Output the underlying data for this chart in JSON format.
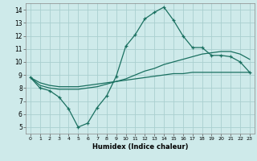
{
  "xlabel": "Humidex (Indice chaleur)",
  "bg_color": "#ceeaea",
  "grid_color": "#aacfcf",
  "line_color": "#1a7060",
  "line1_x": [
    0,
    1,
    2,
    3,
    4,
    5,
    6,
    7,
    8,
    9,
    10,
    11,
    12,
    13,
    14,
    15,
    16,
    17,
    18,
    19,
    20,
    21,
    22,
    23
  ],
  "line1_y": [
    8.8,
    8.0,
    7.8,
    7.3,
    6.4,
    5.0,
    5.3,
    6.5,
    7.4,
    8.9,
    11.2,
    12.1,
    13.3,
    13.8,
    14.2,
    13.2,
    12.0,
    11.1,
    11.1,
    10.5,
    10.5,
    10.4,
    10.0,
    9.2
  ],
  "line2_x": [
    0,
    1,
    2,
    3,
    4,
    5,
    6,
    7,
    8,
    9,
    10,
    11,
    12,
    13,
    14,
    15,
    16,
    17,
    18,
    19,
    20,
    21,
    22,
    23
  ],
  "line2_y": [
    8.8,
    8.2,
    8.0,
    7.9,
    7.9,
    7.9,
    8.0,
    8.1,
    8.3,
    8.5,
    8.7,
    9.0,
    9.3,
    9.5,
    9.8,
    10.0,
    10.2,
    10.4,
    10.6,
    10.7,
    10.8,
    10.8,
    10.6,
    10.2
  ],
  "line3_x": [
    0,
    1,
    2,
    3,
    4,
    5,
    6,
    7,
    8,
    9,
    10,
    11,
    12,
    13,
    14,
    15,
    16,
    17,
    18,
    19,
    20,
    21,
    22,
    23
  ],
  "line3_y": [
    8.8,
    8.4,
    8.2,
    8.1,
    8.1,
    8.1,
    8.2,
    8.3,
    8.4,
    8.5,
    8.6,
    8.7,
    8.8,
    8.9,
    9.0,
    9.1,
    9.1,
    9.2,
    9.2,
    9.2,
    9.2,
    9.2,
    9.2,
    9.2
  ],
  "ylim": [
    4.5,
    14.5
  ],
  "xlim": [
    -0.5,
    23.5
  ],
  "yticks": [
    5,
    6,
    7,
    8,
    9,
    10,
    11,
    12,
    13,
    14
  ],
  "xticks": [
    0,
    1,
    2,
    3,
    4,
    5,
    6,
    7,
    8,
    9,
    10,
    11,
    12,
    13,
    14,
    15,
    16,
    17,
    18,
    19,
    20,
    21,
    22,
    23
  ]
}
